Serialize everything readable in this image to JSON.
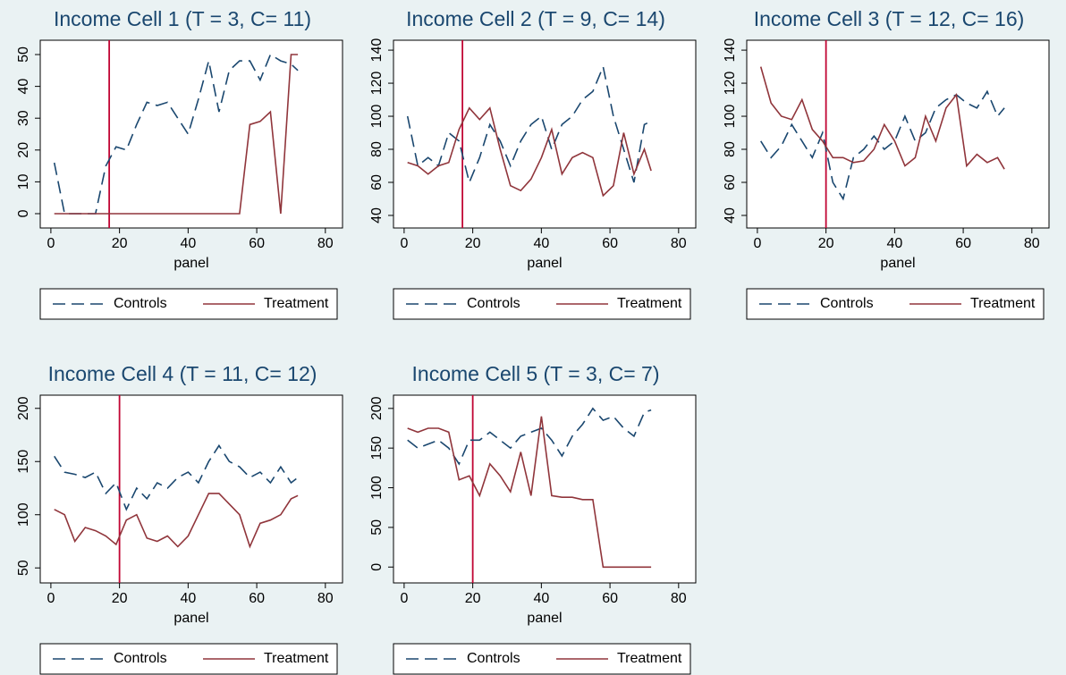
{
  "chart_data": [
    {
      "type": "line",
      "title": "Income Cell 1 (T = 3, C= 11)",
      "x_label": "panel",
      "x": [
        1,
        4,
        7,
        10,
        13,
        16,
        19,
        22,
        25,
        28,
        31,
        34,
        37,
        40,
        43,
        46,
        49,
        52,
        55,
        58,
        61,
        64,
        67,
        70,
        72
      ],
      "series": [
        {
          "name": "Controls",
          "color": "#1a476f",
          "dash": true,
          "values": [
            16,
            0,
            0,
            0,
            0,
            15,
            21,
            20,
            28,
            35,
            34,
            35,
            30,
            25,
            36,
            48,
            32,
            45,
            48,
            48,
            42,
            50,
            48,
            47,
            45
          ]
        },
        {
          "name": "Treatment",
          "color": "#90353b",
          "dash": false,
          "values": [
            0,
            0,
            0,
            0,
            0,
            0,
            0,
            0,
            0,
            0,
            0,
            0,
            0,
            0,
            0,
            0,
            0,
            0,
            0,
            28,
            29,
            32,
            0,
            50,
            50
          ]
        }
      ],
      "vline": 17,
      "vline_color": "#c10534",
      "xlim": [
        -3.1,
        85
      ],
      "xticks": [
        0,
        20,
        40,
        60,
        80
      ],
      "ylim": [
        -4.5,
        54.5
      ],
      "yticks": [
        0,
        10,
        20,
        30,
        40,
        50
      ],
      "grid": false
    },
    {
      "type": "line",
      "title": "Income Cell 2 (T = 9, C= 14)",
      "x_label": "panel",
      "x": [
        1,
        4,
        7,
        10,
        13,
        16,
        19,
        22,
        25,
        28,
        31,
        34,
        37,
        40,
        43,
        46,
        49,
        52,
        55,
        58,
        61,
        64,
        67,
        70,
        72
      ],
      "series": [
        {
          "name": "Controls",
          "color": "#1a476f",
          "dash": true,
          "values": [
            100,
            70,
            75,
            70,
            90,
            85,
            60,
            75,
            95,
            85,
            70,
            85,
            95,
            100,
            80,
            95,
            100,
            110,
            115,
            130,
            100,
            80,
            60,
            95,
            97
          ]
        },
        {
          "name": "Treatment",
          "color": "#90353b",
          "dash": false,
          "values": [
            72,
            70,
            65,
            70,
            72,
            92,
            105,
            98,
            105,
            80,
            58,
            55,
            62,
            75,
            92,
            65,
            75,
            78,
            75,
            52,
            58,
            90,
            65,
            80,
            67
          ]
        }
      ],
      "vline": 17,
      "vline_color": "#c10534",
      "xlim": [
        -3.1,
        85
      ],
      "xticks": [
        0,
        20,
        40,
        60,
        80
      ],
      "ylim": [
        32.4,
        146
      ],
      "yticks": [
        40,
        60,
        80,
        100,
        120,
        140
      ],
      "grid": false
    },
    {
      "type": "line",
      "title": "Income Cell 3 (T = 12, C= 16)",
      "x_label": "panel",
      "x": [
        1,
        4,
        7,
        10,
        13,
        16,
        19,
        22,
        25,
        28,
        31,
        34,
        37,
        40,
        43,
        46,
        49,
        52,
        55,
        58,
        61,
        64,
        67,
        70,
        72
      ],
      "series": [
        {
          "name": "Controls",
          "color": "#1a476f",
          "dash": true,
          "values": [
            85,
            75,
            82,
            95,
            85,
            75,
            90,
            60,
            50,
            75,
            80,
            88,
            80,
            85,
            100,
            85,
            90,
            105,
            110,
            113,
            108,
            105,
            115,
            100,
            105
          ]
        },
        {
          "name": "Treatment",
          "color": "#90353b",
          "dash": false,
          "values": [
            130,
            108,
            100,
            98,
            110,
            92,
            85,
            75,
            75,
            72,
            73,
            80,
            95,
            85,
            70,
            75,
            100,
            85,
            105,
            113,
            70,
            77,
            72,
            75,
            68
          ]
        }
      ],
      "vline": 20,
      "vline_color": "#c10534",
      "xlim": [
        -3.1,
        85
      ],
      "xticks": [
        0,
        20,
        40,
        60,
        80
      ],
      "ylim": [
        32.4,
        146
      ],
      "yticks": [
        40,
        60,
        80,
        100,
        120,
        140
      ],
      "grid": false
    },
    {
      "type": "line",
      "title": "Income Cell 4 (T = 11, C= 12)",
      "x_label": "panel",
      "x": [
        1,
        4,
        7,
        10,
        13,
        16,
        19,
        22,
        25,
        28,
        31,
        34,
        37,
        40,
        43,
        46,
        49,
        52,
        55,
        58,
        61,
        64,
        67,
        70,
        72
      ],
      "series": [
        {
          "name": "Controls",
          "color": "#1a476f",
          "dash": true,
          "values": [
            155,
            140,
            138,
            135,
            140,
            120,
            130,
            105,
            125,
            115,
            130,
            125,
            135,
            140,
            130,
            150,
            165,
            150,
            145,
            135,
            140,
            130,
            145,
            130,
            135
          ]
        },
        {
          "name": "Treatment",
          "color": "#90353b",
          "dash": false,
          "values": [
            105,
            100,
            75,
            88,
            85,
            80,
            72,
            95,
            100,
            78,
            75,
            80,
            70,
            80,
            100,
            120,
            120,
            110,
            100,
            70,
            92,
            95,
            100,
            115,
            118
          ]
        }
      ],
      "vline": 20,
      "vline_color": "#c10534",
      "xlim": [
        -3.1,
        85
      ],
      "xticks": [
        0,
        20,
        40,
        60,
        80
      ],
      "ylim": [
        35.9,
        212.4
      ],
      "yticks": [
        50,
        100,
        150,
        200
      ],
      "grid": false
    },
    {
      "type": "line",
      "title": "Income Cell 5 (T = 3, C= 7)",
      "x_label": "panel",
      "x": [
        1,
        4,
        7,
        10,
        13,
        16,
        19,
        22,
        25,
        28,
        31,
        34,
        37,
        40,
        43,
        46,
        49,
        52,
        55,
        58,
        61,
        64,
        67,
        70,
        72
      ],
      "series": [
        {
          "name": "Controls",
          "color": "#1a476f",
          "dash": true,
          "values": [
            160,
            150,
            155,
            160,
            150,
            130,
            160,
            160,
            170,
            160,
            150,
            165,
            170,
            175,
            160,
            140,
            165,
            180,
            200,
            185,
            190,
            175,
            165,
            195,
            198
          ]
        },
        {
          "name": "Treatment",
          "color": "#90353b",
          "dash": false,
          "values": [
            175,
            170,
            175,
            175,
            170,
            110,
            115,
            90,
            130,
            115,
            95,
            145,
            90,
            190,
            90,
            88,
            88,
            85,
            85,
            0,
            0,
            0,
            0,
            0,
            0
          ]
        }
      ],
      "vline": 20,
      "vline_color": "#c10534",
      "xlim": [
        -3.1,
        85
      ],
      "xticks": [
        0,
        20,
        40,
        60,
        80
      ],
      "ylim": [
        -20,
        216.7
      ],
      "yticks": [
        0,
        50,
        100,
        150,
        200
      ],
      "grid": false
    }
  ]
}
